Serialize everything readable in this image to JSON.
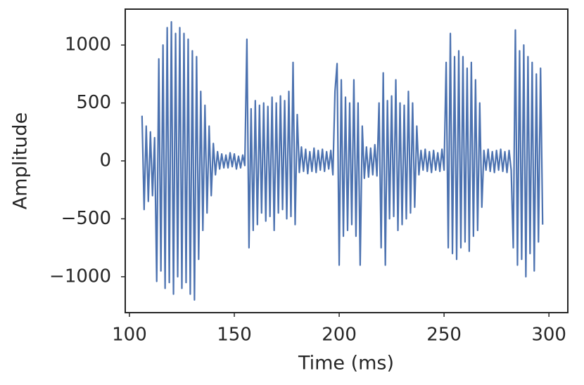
{
  "chart_data": {
    "type": "line",
    "xlabel": "Time (ms)",
    "ylabel": "Amplitude",
    "xlim": [
      98,
      309
    ],
    "ylim": [
      -1310,
      1310
    ],
    "xticks": [
      100,
      150,
      200,
      250,
      300
    ],
    "yticks": [
      {
        "value": -1000,
        "label": "−1000"
      },
      {
        "value": -500,
        "label": "−500"
      },
      0,
      500,
      1000
    ],
    "color": "#4c72b0",
    "x": [
      106,
      107,
      108,
      109,
      110,
      111,
      112,
      113,
      114,
      115,
      116,
      117,
      118,
      119,
      120,
      121,
      122,
      123,
      124,
      125,
      126,
      127,
      128,
      129,
      130,
      131,
      132,
      133,
      134,
      135,
      136,
      137,
      138,
      139,
      140,
      141,
      142,
      143,
      144,
      145,
      146,
      147,
      148,
      149,
      150,
      151,
      152,
      153,
      154,
      155,
      156,
      157,
      158,
      159,
      160,
      161,
      162,
      163,
      164,
      165,
      166,
      167,
      168,
      169,
      170,
      171,
      172,
      173,
      174,
      175,
      176,
      177,
      178,
      179,
      180,
      181,
      182,
      183,
      184,
      185,
      186,
      187,
      188,
      189,
      190,
      191,
      192,
      193,
      194,
      195,
      196,
      197,
      198,
      199,
      200,
      201,
      202,
      203,
      204,
      205,
      206,
      207,
      208,
      209,
      210,
      211,
      212,
      213,
      214,
      215,
      216,
      217,
      218,
      219,
      220,
      221,
      222,
      223,
      224,
      225,
      226,
      227,
      228,
      229,
      230,
      231,
      232,
      233,
      234,
      235,
      236,
      237,
      238,
      239,
      240,
      241,
      242,
      243,
      244,
      245,
      246,
      247,
      248,
      249,
      250,
      251,
      252,
      253,
      254,
      255,
      256,
      257,
      258,
      259,
      260,
      261,
      262,
      263,
      264,
      265,
      266,
      267,
      268,
      269,
      270,
      271,
      272,
      273,
      274,
      275,
      276,
      277,
      278,
      279,
      280,
      281,
      282,
      283,
      284,
      285,
      286,
      287,
      288,
      289,
      290,
      291,
      292,
      293,
      294,
      295,
      296,
      297
    ],
    "values": [
      390,
      -420,
      300,
      -350,
      250,
      -300,
      200,
      -1040,
      880,
      -950,
      1000,
      -1100,
      1150,
      -1050,
      1200,
      -1150,
      1100,
      -1000,
      1150,
      -1100,
      1100,
      -1050,
      1050,
      -1150,
      950,
      -1200,
      900,
      -850,
      600,
      -600,
      480,
      -450,
      300,
      -300,
      150,
      -120,
      80,
      -70,
      60,
      -60,
      50,
      -60,
      70,
      -50,
      60,
      -70,
      40,
      -60,
      50,
      -40,
      1050,
      -750,
      450,
      -600,
      520,
      -550,
      480,
      -450,
      500,
      -520,
      470,
      -480,
      550,
      -600,
      500,
      -450,
      560,
      -420,
      520,
      -500,
      600,
      -480,
      850,
      -550,
      400,
      -100,
      120,
      -90,
      100,
      -110,
      80,
      -90,
      110,
      -100,
      90,
      -80,
      100,
      -90,
      80,
      -70,
      90,
      -120,
      600,
      840,
      -900,
      700,
      -650,
      550,
      -600,
      500,
      -550,
      700,
      -650,
      500,
      -900,
      300,
      -150,
      120,
      -140,
      110,
      -120,
      140,
      -130,
      500,
      -750,
      760,
      -900,
      520,
      -500,
      560,
      -480,
      700,
      -600,
      500,
      -550,
      480,
      -500,
      600,
      -450,
      500,
      -400,
      300,
      -120,
      90,
      -80,
      100,
      -90,
      80,
      -100,
      90,
      -80,
      70,
      -90,
      100,
      -80,
      850,
      -750,
      1100,
      -800,
      900,
      -850,
      950,
      -750,
      900,
      -700,
      800,
      -780,
      850,
      -650,
      700,
      -600,
      500,
      -400,
      90,
      -80,
      100,
      -90,
      80,
      -100,
      90,
      -80,
      100,
      -90,
      80,
      -100,
      90,
      -80,
      -750,
      1130,
      -900,
      950,
      -850,
      1000,
      -1000,
      900,
      -800,
      850,
      -950,
      750,
      -700,
      800,
      -550
    ]
  }
}
